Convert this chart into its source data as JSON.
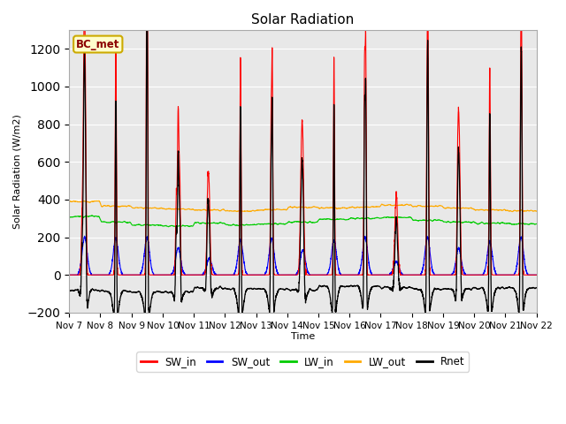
{
  "title": "Solar Radiation",
  "ylabel": "Solar Radiation (W/m2)",
  "xlabel": "Time",
  "ylim": [
    -200,
    1300
  ],
  "yticks": [
    -200,
    0,
    200,
    400,
    600,
    800,
    1000,
    1200
  ],
  "xtick_labels": [
    "Nov 7",
    "Nov 8",
    "Nov 9",
    "Nov 10",
    "Nov 11",
    "Nov 12",
    "Nov 13",
    "Nov 14",
    "Nov 15",
    "Nov 16",
    "Nov 17",
    "Nov 18",
    "Nov 19",
    "Nov 20",
    "Nov 21",
    "Nov 22"
  ],
  "colors": {
    "SW_in": "#ff0000",
    "SW_out": "#0000ff",
    "LW_in": "#00cc00",
    "LW_out": "#ffaa00",
    "Rnet": "#000000"
  },
  "station_label": "BC_met",
  "plot_bg": "#e8e8e8"
}
